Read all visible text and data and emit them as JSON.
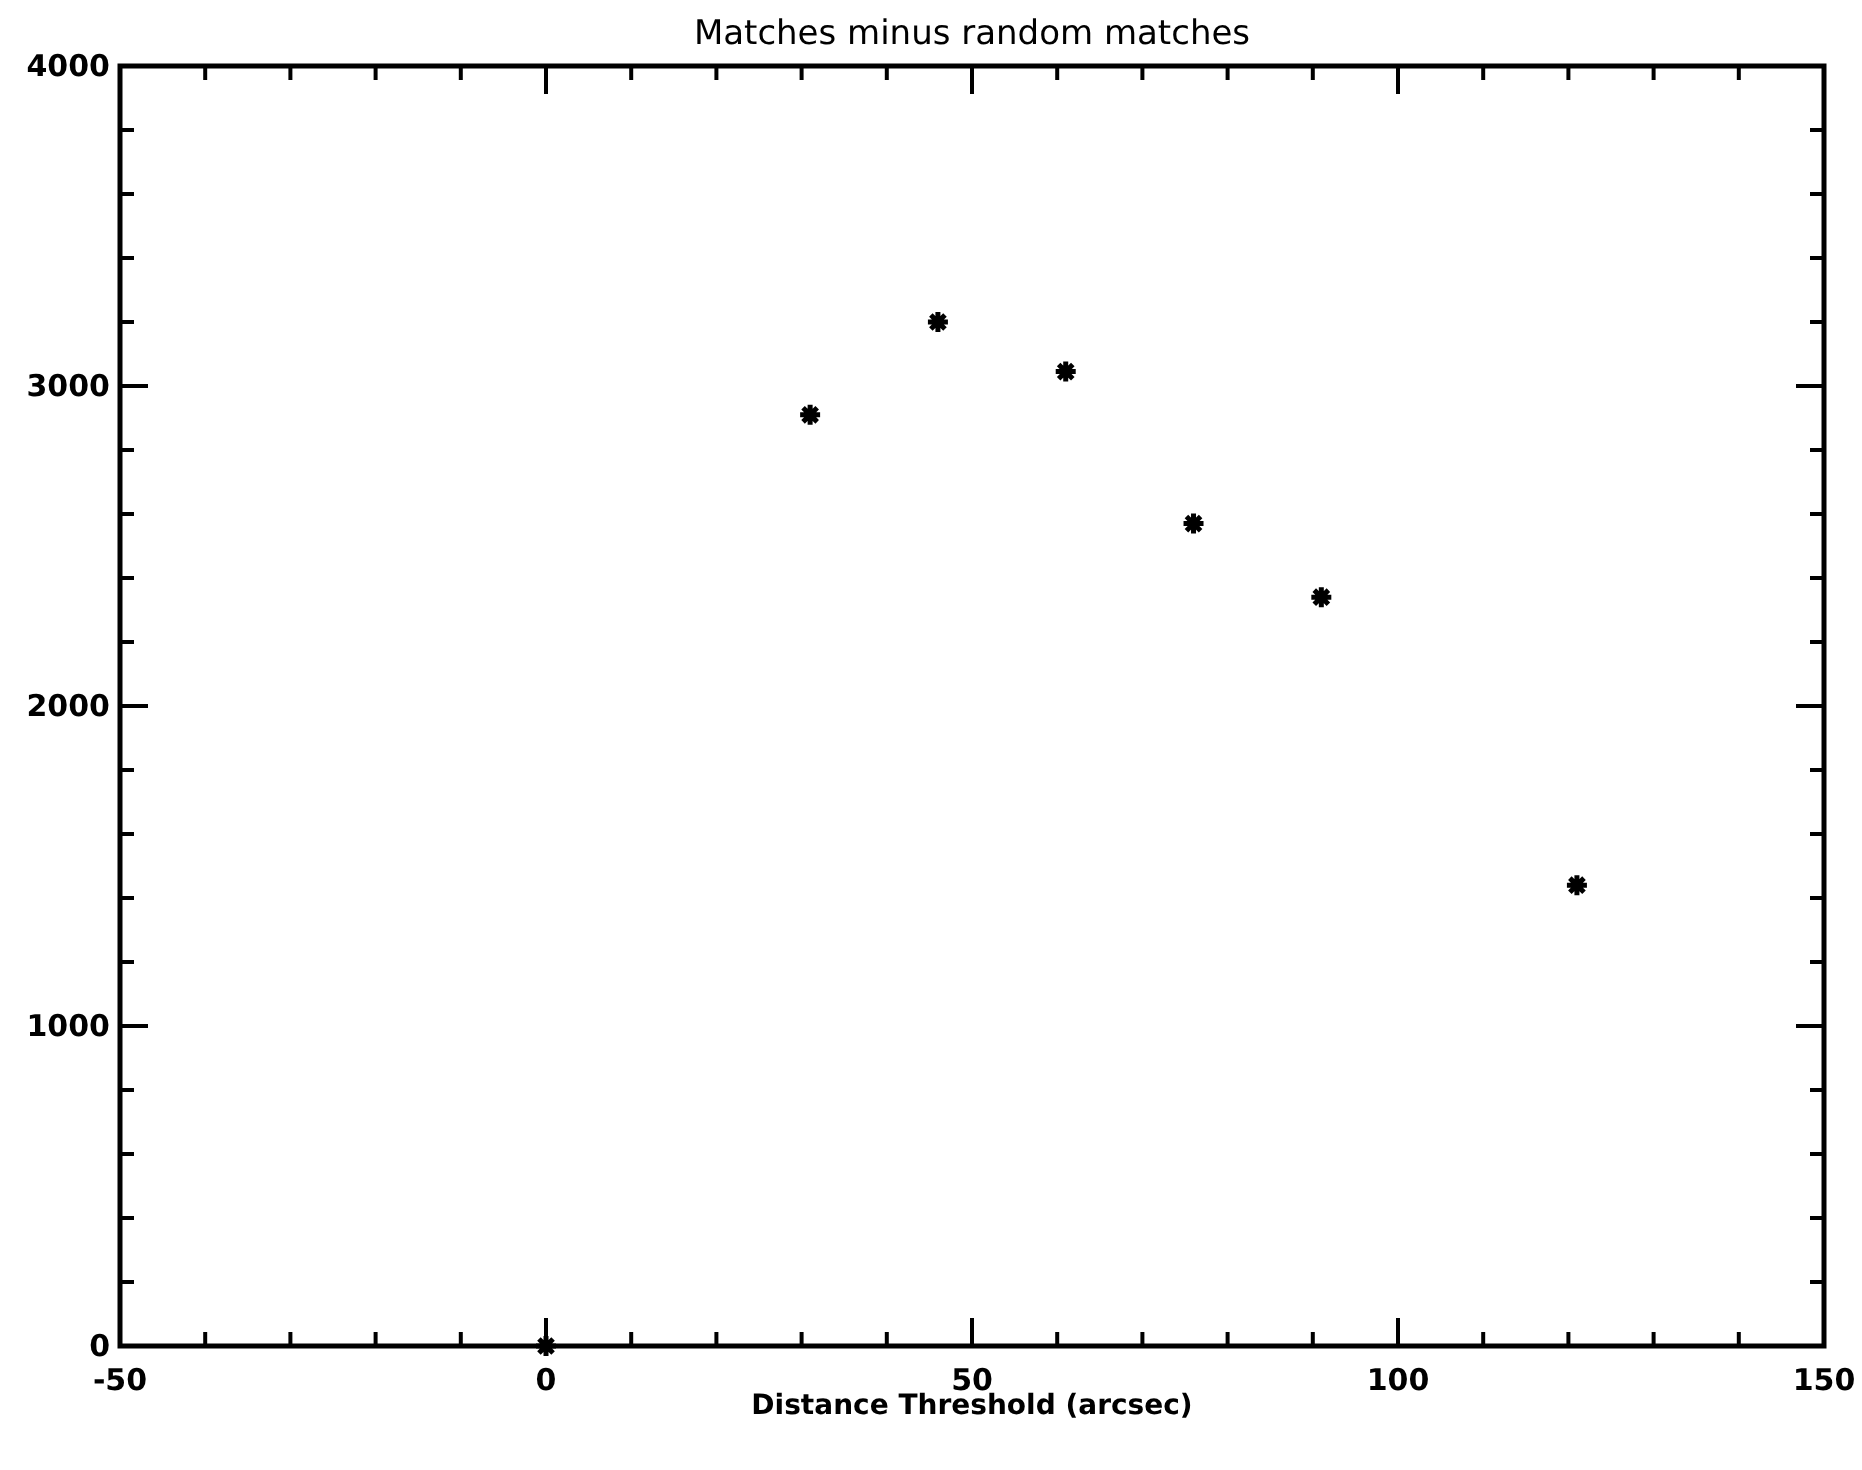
{
  "chart_data": {
    "type": "scatter",
    "title": "Matches minus random matches",
    "xlabel": "Distance Threshold (arcsec)",
    "x": [
      0,
      31,
      46,
      61,
      76,
      91,
      121
    ],
    "values": [
      0,
      2910,
      3200,
      3045,
      2570,
      2340,
      1440
    ],
    "color": "#000000",
    "marker": "cross",
    "xlim": [
      -50,
      150
    ],
    "xticks": [
      -50,
      0,
      50,
      100,
      150
    ],
    "ylim": [
      0,
      4000
    ],
    "yticks": [
      0,
      1000,
      2000,
      3000,
      4000
    ],
    "grid": false
  }
}
